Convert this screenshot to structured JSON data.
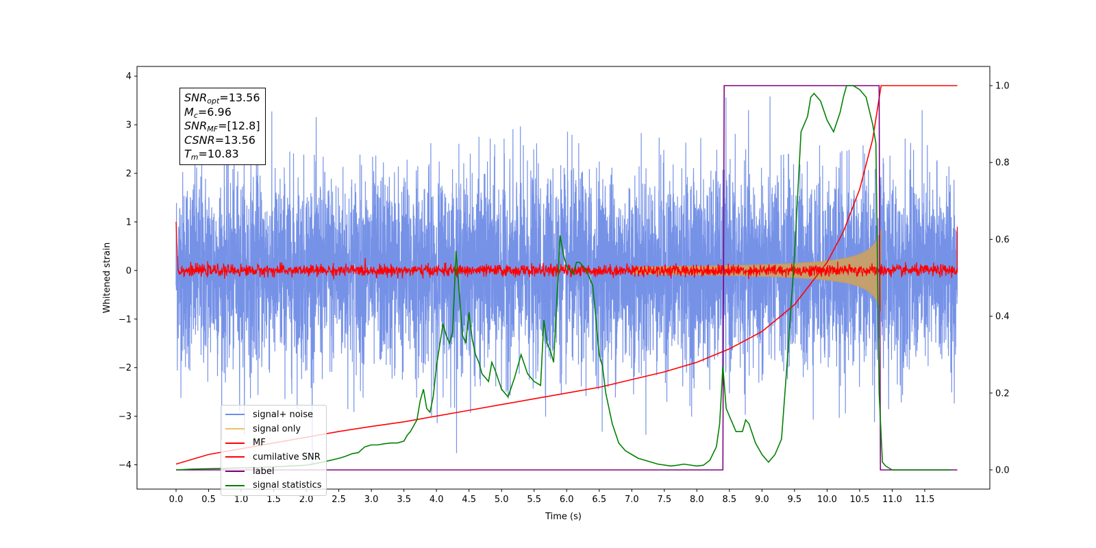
{
  "chart_data": {
    "type": "line",
    "title": "",
    "xlabel": "Time (s)",
    "ylabel": "Whitened strain",
    "xlim": [
      -0.6,
      12.5
    ],
    "ylim": [
      -4.5,
      4.2
    ],
    "y2lim": [
      -0.05,
      1.05
    ],
    "x_ticks": [
      "0.0",
      "0.5",
      "1.0",
      "1.5",
      "2.0",
      "2.5",
      "3.0",
      "3.5",
      "4.0",
      "4.5",
      "5.0",
      "5.5",
      "6.0",
      "6.5",
      "7.0",
      "7.5",
      "8.0",
      "8.5",
      "9.0",
      "9.5",
      "10.0",
      "10.5",
      "11.0",
      "11.5"
    ],
    "y_ticks": [
      "−4",
      "−3",
      "−2",
      "−1",
      "0",
      "1",
      "2",
      "3",
      "4"
    ],
    "y2_ticks": [
      "0.0",
      "0.2",
      "0.4",
      "0.6",
      "0.8",
      "1.0"
    ],
    "grid": false,
    "legend_position": "lower-left",
    "annotation": {
      "snr_opt": "13.56",
      "mc": "6.96",
      "snr_mf": "[12.8]",
      "csnr": "13.56",
      "tm": "10.83"
    },
    "series": [
      {
        "name": "signal+ noise",
        "color": "#6f8ce6",
        "axis": "left",
        "description_values": {
          "x_range": [
            0,
            12.0
          ],
          "noise_sigma": 1.0,
          "y_min": -4.15,
          "y_max": 3.8
        }
      },
      {
        "name": "signal only",
        "color": "#f0c060",
        "axis": "left",
        "description_values": {
          "x_range": [
            0,
            10.83
          ],
          "amplitude_at_end": 0.85
        }
      },
      {
        "name": "MF",
        "color": "#ff0000",
        "axis": "left",
        "description_values": {
          "x_range": [
            0,
            12.0
          ],
          "baseline": 0.0,
          "spike_start": 1.0,
          "spike_end": 0.9
        }
      },
      {
        "name": "cumilative SNR",
        "color": "#ff0000",
        "axis": "right",
        "x": [
          0.0,
          0.5,
          1.0,
          1.5,
          2.0,
          2.5,
          3.0,
          3.5,
          4.0,
          4.5,
          5.0,
          5.5,
          6.0,
          6.5,
          7.0,
          7.5,
          8.0,
          8.5,
          9.0,
          9.5,
          10.0,
          10.25,
          10.5,
          10.7,
          10.83,
          11.0,
          12.0
        ],
        "y": [
          0.015,
          0.04,
          0.055,
          0.07,
          0.085,
          0.1,
          0.113,
          0.125,
          0.14,
          0.155,
          0.17,
          0.185,
          0.2,
          0.215,
          0.235,
          0.255,
          0.28,
          0.315,
          0.36,
          0.43,
          0.54,
          0.62,
          0.73,
          0.86,
          1.0,
          1.0,
          1.0
        ]
      },
      {
        "name": "label",
        "color": "#800080",
        "axis": "right",
        "x": [
          0.0,
          8.4,
          8.42,
          10.8,
          10.82,
          12.0
        ],
        "y": [
          0.0,
          0.0,
          1.0,
          1.0,
          0.0,
          0.0
        ]
      },
      {
        "name": "signal statistics",
        "color": "#008000",
        "axis": "right",
        "x": [
          0.0,
          0.25,
          0.5,
          0.75,
          1.0,
          1.25,
          1.5,
          1.75,
          2.0,
          2.25,
          2.5,
          2.6,
          2.7,
          2.8,
          2.9,
          3.0,
          3.1,
          3.2,
          3.3,
          3.4,
          3.5,
          3.55,
          3.6,
          3.7,
          3.75,
          3.8,
          3.85,
          3.9,
          3.95,
          4.0,
          4.1,
          4.15,
          4.2,
          4.25,
          4.3,
          4.4,
          4.45,
          4.5,
          4.55,
          4.6,
          4.65,
          4.7,
          4.8,
          4.85,
          4.9,
          5.0,
          5.1,
          5.2,
          5.3,
          5.4,
          5.5,
          5.6,
          5.65,
          5.7,
          5.75,
          5.8,
          5.9,
          5.95,
          6.0,
          6.1,
          6.15,
          6.2,
          6.3,
          6.4,
          6.5,
          6.55,
          6.6,
          6.7,
          6.8,
          6.9,
          7.0,
          7.1,
          7.2,
          7.4,
          7.6,
          7.7,
          7.8,
          8.0,
          8.1,
          8.2,
          8.3,
          8.35,
          8.4,
          8.45,
          8.5,
          8.55,
          8.6,
          8.7,
          8.75,
          8.8,
          8.9,
          9.0,
          9.05,
          9.1,
          9.2,
          9.3,
          9.4,
          9.5,
          9.6,
          9.7,
          9.75,
          9.8,
          9.9,
          10.0,
          10.1,
          10.2,
          10.25,
          10.3,
          10.4,
          10.5,
          10.6,
          10.7,
          10.75,
          10.8,
          10.85,
          10.9,
          11.0,
          11.5,
          11.9
        ],
        "y": [
          0.0,
          0.002,
          0.003,
          0.004,
          0.005,
          0.006,
          0.008,
          0.01,
          0.012,
          0.02,
          0.03,
          0.035,
          0.042,
          0.045,
          0.06,
          0.065,
          0.065,
          0.068,
          0.07,
          0.07,
          0.075,
          0.09,
          0.1,
          0.13,
          0.18,
          0.21,
          0.16,
          0.15,
          0.19,
          0.27,
          0.38,
          0.35,
          0.33,
          0.36,
          0.57,
          0.35,
          0.33,
          0.41,
          0.34,
          0.3,
          0.28,
          0.25,
          0.23,
          0.28,
          0.26,
          0.21,
          0.19,
          0.24,
          0.3,
          0.25,
          0.23,
          0.22,
          0.39,
          0.33,
          0.31,
          0.28,
          0.61,
          0.56,
          0.53,
          0.51,
          0.54,
          0.54,
          0.52,
          0.48,
          0.3,
          0.27,
          0.2,
          0.12,
          0.07,
          0.05,
          0.04,
          0.03,
          0.025,
          0.015,
          0.01,
          0.012,
          0.015,
          0.01,
          0.012,
          0.025,
          0.06,
          0.12,
          0.27,
          0.16,
          0.14,
          0.12,
          0.1,
          0.1,
          0.13,
          0.12,
          0.07,
          0.04,
          0.03,
          0.02,
          0.04,
          0.08,
          0.31,
          0.56,
          0.88,
          0.92,
          0.97,
          0.98,
          0.96,
          0.91,
          0.88,
          0.93,
          0.97,
          1.0,
          1.0,
          0.99,
          0.97,
          0.9,
          0.85,
          0.2,
          0.02,
          0.01,
          0.0,
          0.0,
          0.0
        ]
      }
    ]
  }
}
